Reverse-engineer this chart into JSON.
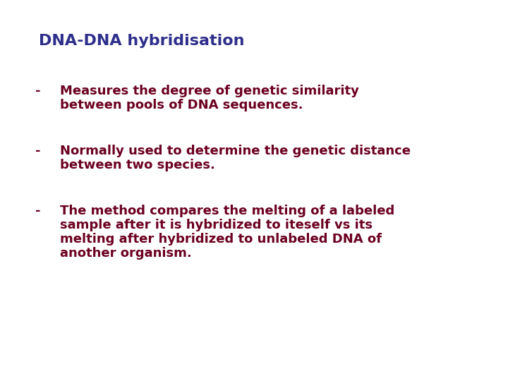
{
  "title": "DNA-DNA hybridisation",
  "title_color": "#2e2e8b",
  "title_fontsize": 16,
  "title_bold": true,
  "bullet_color": "#6b0020",
  "bullet_fontsize": 13,
  "bullet_bold": true,
  "background_color": "#ffffff",
  "bullets": [
    {
      "dash": "-",
      "lines": [
        "Measures the degree of genetic similarity",
        "between pools of DNA sequences."
      ]
    },
    {
      "dash": "-",
      "lines": [
        "Normally used to determine the genetic distance",
        "between two species."
      ]
    },
    {
      "dash": "-",
      "lines": [
        "The method compares the melting of a labeled",
        "sample after it is hybridized to iteself vs its",
        "melting after hybridized to unlabeled DNA of",
        "another organism."
      ]
    }
  ]
}
